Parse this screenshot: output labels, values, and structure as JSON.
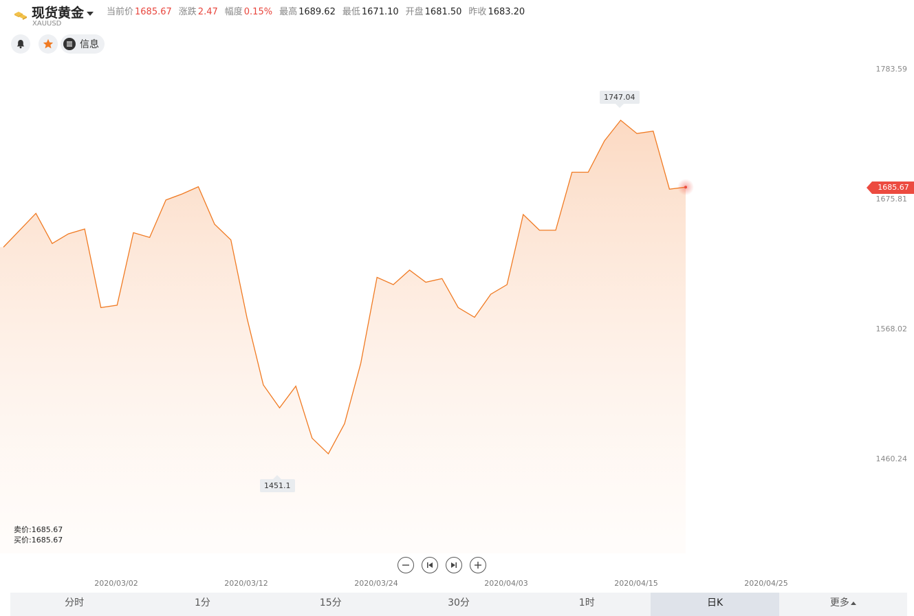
{
  "header": {
    "title": "现货黄金",
    "symbol": "XAUUSD",
    "quotes": [
      {
        "label": "当前价",
        "value": "1685.67",
        "up": true
      },
      {
        "label": "涨跌",
        "value": "2.47",
        "up": true
      },
      {
        "label": "幅度",
        "value": "0.15%",
        "up": true
      },
      {
        "label": "最高",
        "value": "1689.62",
        "up": false
      },
      {
        "label": "最低",
        "value": "1671.10",
        "up": false
      },
      {
        "label": "开盘",
        "value": "1681.50",
        "up": false
      },
      {
        "label": "昨收",
        "value": "1683.20",
        "up": false
      }
    ]
  },
  "toolbar": {
    "alert_icon": "bell-icon",
    "favorite_icon": "star-icon",
    "info_label": "信息"
  },
  "colors": {
    "line": "#f07a22",
    "up": "#e8453c",
    "star": "#f07a22"
  },
  "chart_data": {
    "type": "area",
    "y_ticks": [
      "1783.59",
      "1675.81",
      "1568.02",
      "1460.24"
    ],
    "x_ticks": [
      "2020/03/02",
      "2020/03/12",
      "2020/03/24",
      "2020/04/03",
      "2020/04/15",
      "2020/04/25"
    ],
    "ylim": [
      1352.45,
      1783.59
    ],
    "values": [
      1636,
      1650,
      1664,
      1639,
      1647,
      1651,
      1586,
      1588,
      1648,
      1644,
      1675,
      1680,
      1686,
      1655,
      1642,
      1577,
      1522,
      1503,
      1521,
      1478,
      1465,
      1490,
      1540,
      1611,
      1605,
      1617,
      1607,
      1610,
      1586,
      1578,
      1597,
      1605,
      1663,
      1650,
      1650,
      1698,
      1698,
      1724,
      1741,
      1730,
      1732,
      1684,
      1685.67
    ],
    "high_label": "1747.04",
    "low_label": "1451.1",
    "current_price": "1685.67"
  },
  "bid_ask": {
    "sell": "卖价:1685.67",
    "buy": "买价:1685.67"
  },
  "periods": [
    {
      "label": "分时",
      "active": false
    },
    {
      "label": "1分",
      "active": false
    },
    {
      "label": "15分",
      "active": false
    },
    {
      "label": "30分",
      "active": false
    },
    {
      "label": "1时",
      "active": false
    },
    {
      "label": "日K",
      "active": true
    },
    {
      "label": "更多",
      "active": false
    }
  ]
}
